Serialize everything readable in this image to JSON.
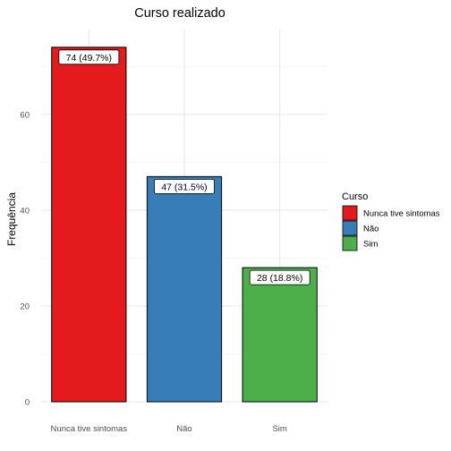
{
  "chart_data": {
    "type": "bar",
    "title": "Curso realizado",
    "xlabel": "",
    "ylabel": "Frequência",
    "categories": [
      "Nunca tive sintomas",
      "Não",
      "Sim"
    ],
    "values": [
      74,
      47,
      28
    ],
    "data_labels": [
      "74 (49.7%)",
      "47 (31.5%)",
      "28 (18.8%)"
    ],
    "colors": [
      "#E41A1C",
      "#377EB8",
      "#4DAF4A"
    ],
    "y_ticks": [
      0,
      20,
      40,
      60
    ],
    "ylim": [
      0,
      77.7
    ],
    "grid": true,
    "legend": {
      "title": "Curso",
      "position": "right",
      "entries": [
        "Nunca tive sintomas",
        "Não",
        "Sim"
      ]
    }
  }
}
